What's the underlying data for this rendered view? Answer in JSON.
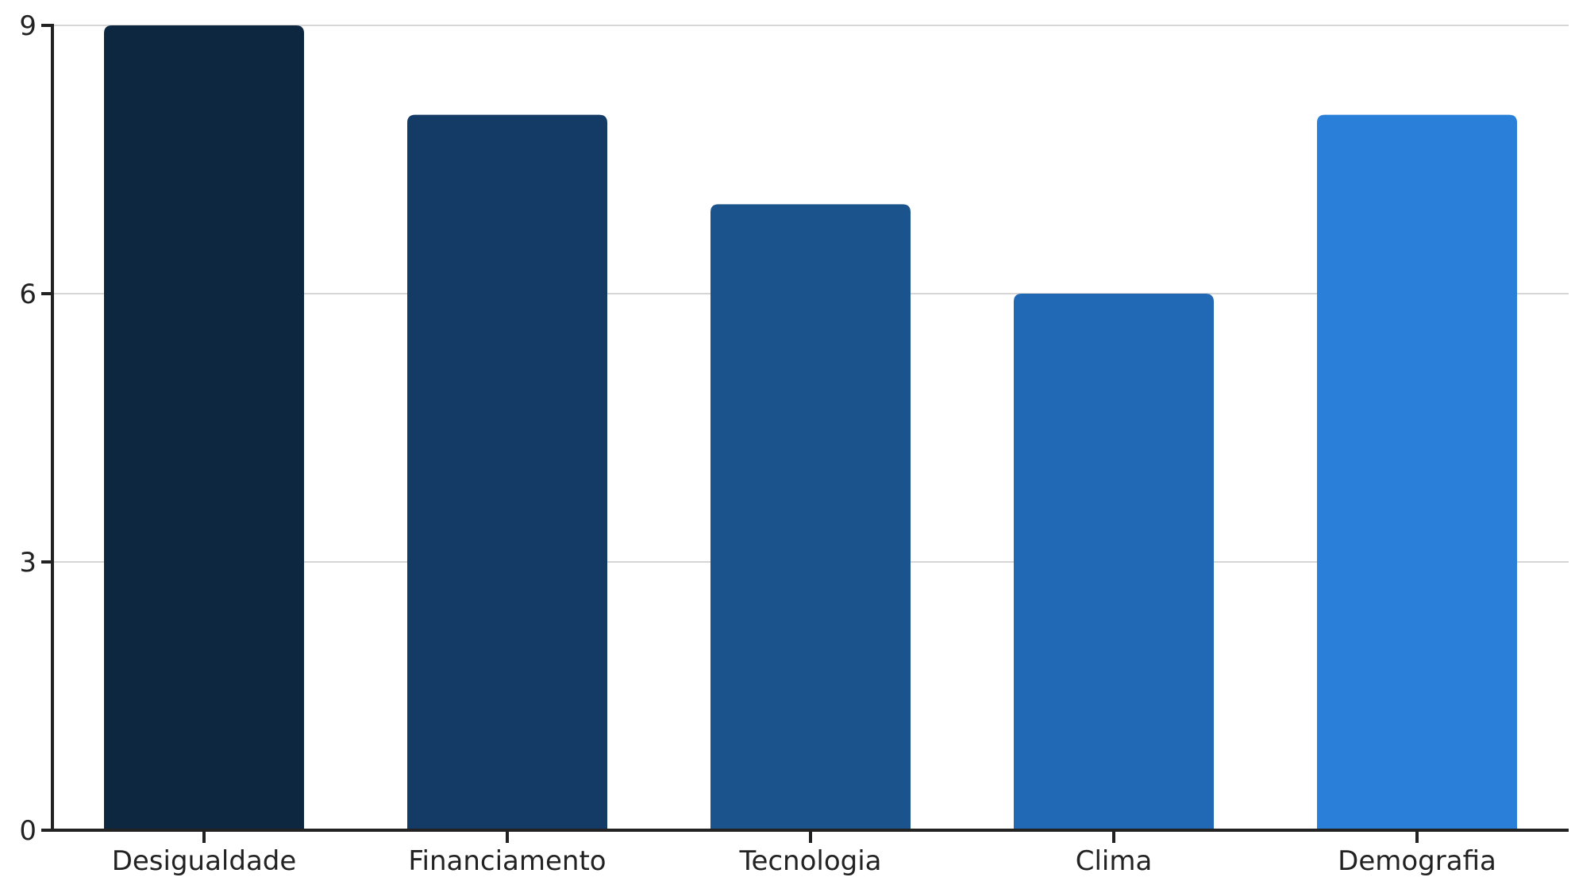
{
  "chart_data": {
    "type": "bar",
    "title": "",
    "xlabel": "",
    "ylabel": "",
    "categories": [
      "Desigualdade",
      "Financiamento",
      "Tecnologia",
      "Clima",
      "Demografia"
    ],
    "values": [
      9,
      8,
      7,
      6,
      8
    ],
    "ylim": [
      0,
      9
    ],
    "yticks": [
      0,
      3,
      6,
      9
    ],
    "ytick_labels": [
      "0",
      "3",
      "6",
      "9"
    ],
    "grid": "horizontal",
    "colors": [
      "#0e2741",
      "#143b66",
      "#1b548c",
      "#2169b4",
      "#2a80d8"
    ],
    "axis_color": "#222222",
    "grid_color": "#d6d6d6"
  }
}
